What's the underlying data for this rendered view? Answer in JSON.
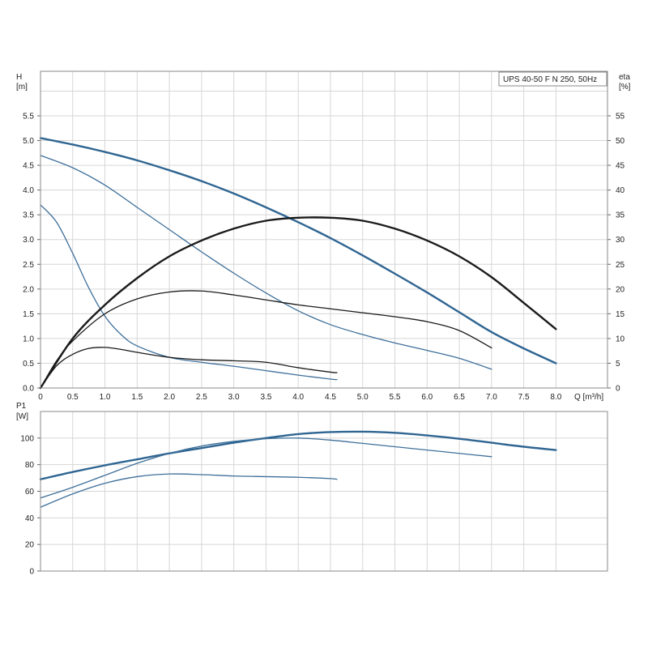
{
  "chart_data": [
    {
      "type": "line",
      "title": "UPS 40-50 F N 250, 50Hz",
      "xlabel": "Q [m³/h]",
      "ylabel_top": "H",
      "ylabel_unit": "[m]",
      "y2label_top": "eta",
      "y2label_unit": "[%]",
      "xlim": [
        0,
        8.8
      ],
      "ylim": [
        0,
        6.4
      ],
      "y2lim": [
        0,
        64
      ],
      "grid": true,
      "xticks": [
        "0",
        "0.5",
        "1.0",
        "1.5",
        "2.0",
        "2.5",
        "3.0",
        "3.5",
        "4.0",
        "4.5",
        "5.0",
        "5.5",
        "6.0",
        "6.5",
        "7.0",
        "7.5",
        "8.0"
      ],
      "yticks": [
        "0.0",
        "0.5",
        "1.0",
        "1.5",
        "2.0",
        "2.5",
        "3.0",
        "3.5",
        "4.0",
        "4.5",
        "5.0",
        "5.5"
      ],
      "y2ticks": [
        "0",
        "5",
        "10",
        "15",
        "20",
        "25",
        "30",
        "35",
        "40",
        "45",
        "50",
        "55"
      ],
      "series": [
        {
          "axis": "H",
          "color": "#2f6592",
          "thick": true,
          "x": [
            0,
            0.5,
            1.0,
            1.5,
            2.0,
            2.5,
            3.0,
            3.5,
            4.0,
            4.5,
            5.0,
            5.5,
            6.0,
            6.5,
            7.0,
            7.5,
            8.0
          ],
          "y": [
            5.05,
            4.92,
            4.77,
            4.6,
            4.4,
            4.18,
            3.93,
            3.65,
            3.35,
            3.03,
            2.68,
            2.31,
            1.93,
            1.53,
            1.13,
            0.8,
            0.5
          ]
        },
        {
          "axis": "H",
          "color": "#3e6f9a",
          "thick": false,
          "x": [
            0,
            0.5,
            1.0,
            1.5,
            2.0,
            2.5,
            3.0,
            3.5,
            4.0,
            4.5,
            5.0,
            5.5,
            6.0,
            6.5,
            7.0
          ],
          "y": [
            4.7,
            4.45,
            4.1,
            3.65,
            3.2,
            2.75,
            2.32,
            1.92,
            1.56,
            1.28,
            1.08,
            0.91,
            0.76,
            0.6,
            0.38
          ]
        },
        {
          "axis": "H",
          "color": "#3e6f9a",
          "thick": false,
          "x": [
            0,
            0.25,
            0.5,
            0.75,
            1.0,
            1.25,
            1.5,
            2.0,
            2.5,
            3.0,
            3.5,
            4.0,
            4.5,
            4.6
          ],
          "y": [
            3.7,
            3.35,
            2.72,
            2.02,
            1.45,
            1.08,
            0.85,
            0.62,
            0.52,
            0.44,
            0.35,
            0.26,
            0.18,
            0.17
          ]
        },
        {
          "axis": "eta",
          "color": "#1a1a1a",
          "thick": true,
          "x": [
            0,
            0.5,
            1.0,
            1.5,
            2.0,
            2.5,
            3.0,
            3.5,
            4.0,
            4.5,
            5.0,
            5.5,
            6.0,
            6.5,
            7.0,
            7.5,
            8.0
          ],
          "y": [
            0,
            10.0,
            16.8,
            22.2,
            26.6,
            29.8,
            32.2,
            33.8,
            34.4,
            34.4,
            33.8,
            32.2,
            29.8,
            26.6,
            22.4,
            17.2,
            11.9
          ]
        },
        {
          "axis": "eta",
          "color": "#1a1a1a",
          "thick": false,
          "x": [
            0,
            0.25,
            0.5,
            1.0,
            1.5,
            2.0,
            2.5,
            3.0,
            3.5,
            4.0,
            4.5,
            5.0,
            5.5,
            6.0,
            6.5,
            7.0
          ],
          "y": [
            0,
            5.5,
            9.5,
            15.0,
            18.0,
            19.4,
            19.6,
            18.8,
            17.8,
            16.8,
            16.0,
            15.2,
            14.4,
            13.4,
            11.6,
            8.1
          ]
        },
        {
          "axis": "eta",
          "color": "#1a1a1a",
          "thick": false,
          "x": [
            0,
            0.25,
            0.5,
            0.75,
            1.0,
            1.25,
            1.5,
            2.0,
            2.5,
            3.0,
            3.5,
            4.0,
            4.5,
            4.6
          ],
          "y": [
            0,
            4.5,
            6.8,
            8.0,
            8.2,
            7.8,
            7.2,
            6.2,
            5.7,
            5.5,
            5.2,
            4.1,
            3.2,
            3.1
          ]
        }
      ]
    },
    {
      "type": "line",
      "ylabel_top": "P1",
      "ylabel_unit": "[W]",
      "xlim": [
        0,
        8.8
      ],
      "ylim": [
        0,
        120
      ],
      "grid": true,
      "yticks": [
        "0",
        "20",
        "40",
        "60",
        "80",
        "100"
      ],
      "series": [
        {
          "color": "#2f6592",
          "thick": true,
          "x": [
            0,
            0.5,
            1.0,
            1.5,
            2.0,
            2.5,
            3.0,
            3.5,
            4.0,
            4.5,
            5.0,
            5.5,
            6.0,
            6.5,
            7.0,
            7.5,
            8.0
          ],
          "y": [
            69,
            74.5,
            79.5,
            84,
            88.5,
            92.5,
            96.5,
            100,
            103,
            104.5,
            104.8,
            104,
            102,
            99.5,
            96.5,
            93.5,
            91
          ]
        },
        {
          "color": "#3e6f9a",
          "thick": false,
          "x": [
            0,
            0.5,
            1.0,
            1.5,
            2.0,
            2.5,
            3.0,
            3.5,
            4.0,
            4.5,
            5.0,
            5.5,
            6.0,
            6.5,
            7.0
          ],
          "y": [
            55,
            63,
            72,
            81,
            88.5,
            94,
            97.5,
            99.5,
            100,
            98.5,
            96,
            93.5,
            91,
            88.5,
            86
          ]
        },
        {
          "color": "#3e6f9a",
          "thick": false,
          "x": [
            0,
            0.5,
            1.0,
            1.5,
            2.0,
            2.5,
            3.0,
            3.5,
            4.0,
            4.5,
            4.6
          ],
          "y": [
            48,
            58,
            66,
            71,
            73,
            72.5,
            71.5,
            71,
            70.5,
            69.5,
            69
          ]
        }
      ]
    }
  ]
}
